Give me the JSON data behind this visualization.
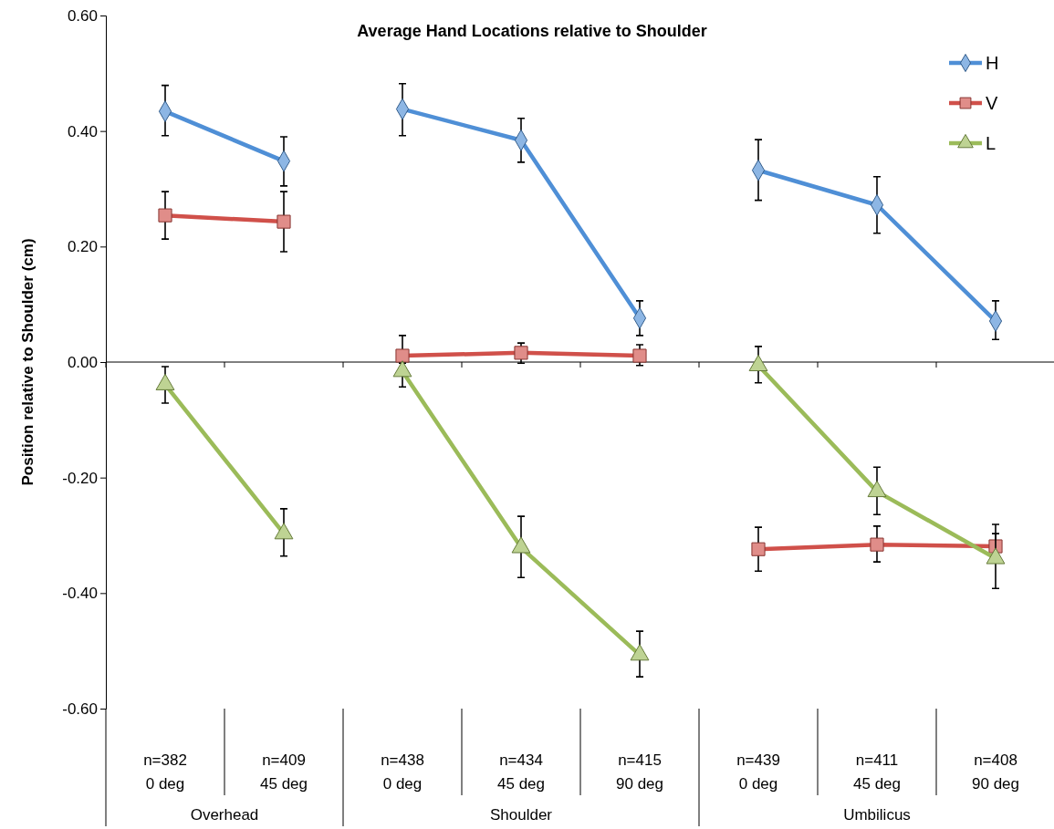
{
  "chart_data": {
    "type": "line",
    "title": "Average Hand Locations relative to Shoulder",
    "ylabel": "Position relative to Shoulder (cm)",
    "categories": [
      "n=382\n0 deg",
      "n=409\n45 deg",
      "n=438\n0 deg",
      "n=434\n45 deg",
      "n=415\n90 deg",
      "n=439\n0 deg",
      "n=411\n45 deg",
      "n=408\n90 deg"
    ],
    "annotations": [
      "Overhead",
      "Shoulder",
      "Umbilicus"
    ],
    "ylim": [
      -0.6,
      0.6
    ],
    "yticks": [
      {
        "value": -0.6,
        "label": "-0.60"
      },
      {
        "value": -0.4,
        "label": "-0.40"
      },
      {
        "value": -0.2,
        "label": "-0.20"
      },
      {
        "value": 0,
        "label": "0.00"
      },
      {
        "value": 0.2,
        "label": "0.20"
      },
      {
        "value": 0.4,
        "label": "0.40"
      },
      {
        "value": 0.6,
        "label": "0.60"
      }
    ],
    "legend": "top right",
    "series": [
      {
        "name": "H",
        "color": "#4f8fd6",
        "marker": "diamond",
        "values": [
          0.434,
          0.348,
          0.438,
          0.384,
          0.076,
          0.332,
          0.272,
          0.071
        ],
        "errors": [
          [
            0.392,
            0.479
          ],
          [
            0.305,
            0.39
          ],
          [
            0.392,
            0.482
          ],
          [
            0.346,
            0.422
          ],
          [
            0.046,
            0.106
          ],
          [
            0.28,
            0.385
          ],
          [
            0.223,
            0.321
          ],
          [
            0.039,
            0.106
          ]
        ]
      },
      {
        "name": "V",
        "color": "#d0504a",
        "marker": "square",
        "values": [
          0.254,
          0.243,
          0.011,
          0.016,
          0.011,
          -0.324,
          -0.316,
          -0.319
        ],
        "errors": [
          [
            0.213,
            0.295
          ],
          [
            0.191,
            0.295
          ],
          [
            -0.021,
            0.046
          ],
          [
            -0.002,
            0.033
          ],
          [
            -0.006,
            0.03
          ],
          [
            -0.362,
            -0.286
          ],
          [
            -0.346,
            -0.284
          ],
          [
            -0.319,
            -0.281
          ]
        ]
      },
      {
        "name": "L",
        "color": "#9bbb59",
        "marker": "triangle",
        "values": [
          -0.039,
          -0.297,
          -0.016,
          -0.321,
          -0.507,
          -0.006,
          -0.224,
          -0.34
        ],
        "errors": [
          [
            -0.071,
            -0.008
          ],
          [
            -0.336,
            -0.254
          ],
          [
            -0.043,
            -0.002
          ],
          [
            -0.373,
            -0.267
          ],
          [
            -0.545,
            -0.466
          ],
          [
            -0.036,
            0.027
          ],
          [
            -0.264,
            -0.182
          ],
          [
            -0.392,
            -0.297
          ]
        ]
      }
    ]
  }
}
